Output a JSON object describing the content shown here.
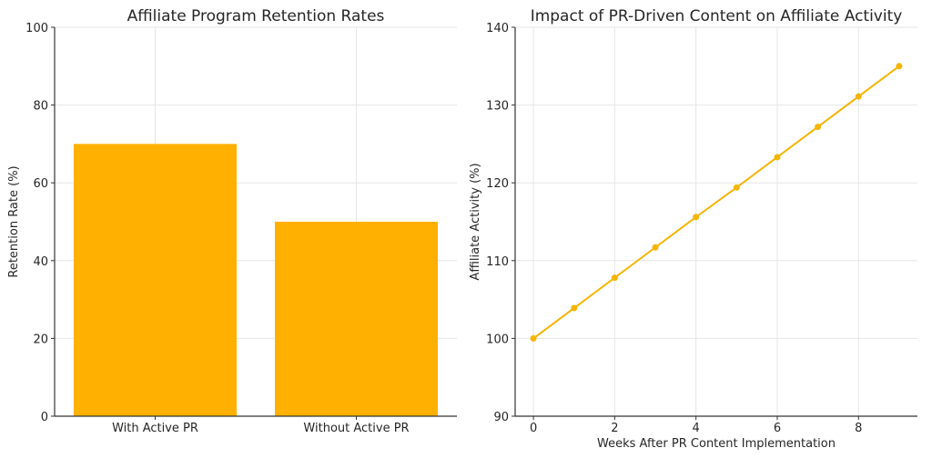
{
  "chart_data": [
    {
      "type": "bar",
      "title": "Affiliate Program Retention Rates",
      "xlabel": "",
      "ylabel": "Retention Rate (%)",
      "categories": [
        "With Active PR",
        "Without Active PR"
      ],
      "values": [
        70,
        50
      ],
      "ylim": [
        0,
        100
      ],
      "yticks": [
        0,
        20,
        40,
        60,
        80,
        100
      ],
      "grid": true,
      "color": "#FFB000"
    },
    {
      "type": "line",
      "title": "Impact of PR-Driven Content on Affiliate Activity",
      "xlabel": "Weeks After PR Content Implementation",
      "ylabel": "Affiliate Activity (%)",
      "x": [
        0,
        1,
        2,
        3,
        4,
        5,
        6,
        7,
        8,
        9
      ],
      "y": [
        100,
        103.9,
        107.8,
        111.7,
        115.6,
        119.4,
        123.3,
        127.2,
        131.1,
        135
      ],
      "xticks": [
        0,
        2,
        4,
        6,
        8
      ],
      "yticks": [
        90,
        100,
        110,
        120,
        130,
        140
      ],
      "xlim": [
        -0.45,
        9.45
      ],
      "ylim": [
        90,
        140
      ],
      "grid": true,
      "color": "#F5B400"
    }
  ]
}
